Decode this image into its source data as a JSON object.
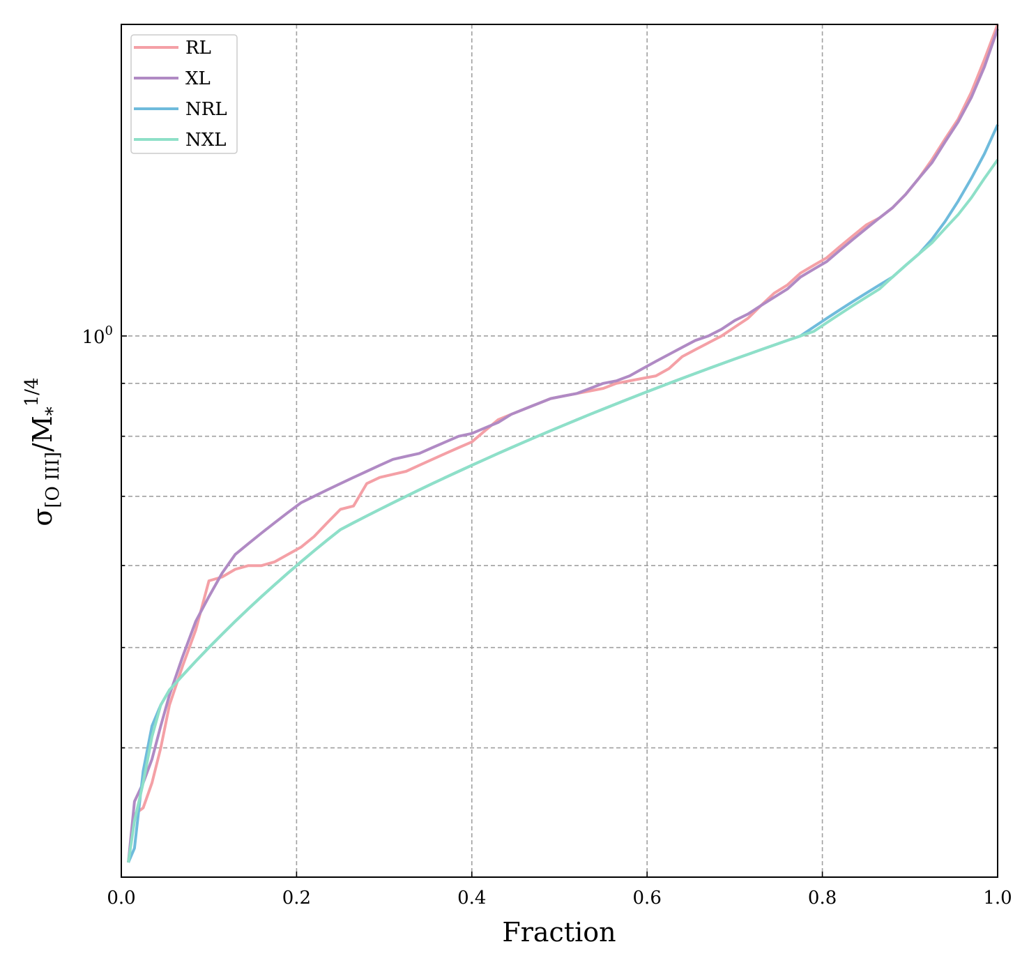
{
  "chart_data": {
    "type": "line",
    "xlabel": "Fraction",
    "ylabel": "σ[O III]/M*1/4",
    "ylabel_parts": {
      "sigma": "σ",
      "subscript": "[O III]",
      "mid": "/M",
      "sub2": "*",
      "sup": "1/4"
    },
    "xlim": [
      0.0,
      1.0
    ],
    "ylim": [
      0.3,
      2.0
    ],
    "y_scale": "log",
    "x_ticks": [
      "0.0",
      "0.2",
      "0.4",
      "0.6",
      "0.8",
      "1.0"
    ],
    "y_tick_major": {
      "base": "10",
      "exp": "0"
    },
    "grid": true,
    "legend_position": "upper-left",
    "series": [
      {
        "name": "RL",
        "color": "#f4a0a6",
        "x": [
          0.008,
          0.015,
          0.025,
          0.035,
          0.045,
          0.055,
          0.07,
          0.085,
          0.1,
          0.115,
          0.13,
          0.145,
          0.16,
          0.175,
          0.19,
          0.205,
          0.22,
          0.235,
          0.25,
          0.265,
          0.28,
          0.295,
          0.31,
          0.325,
          0.34,
          0.355,
          0.37,
          0.385,
          0.4,
          0.415,
          0.43,
          0.445,
          0.46,
          0.475,
          0.49,
          0.505,
          0.52,
          0.535,
          0.55,
          0.565,
          0.58,
          0.595,
          0.61,
          0.625,
          0.64,
          0.655,
          0.67,
          0.685,
          0.7,
          0.715,
          0.73,
          0.745,
          0.76,
          0.775,
          0.79,
          0.805,
          0.82,
          0.835,
          0.85,
          0.865,
          0.88,
          0.895,
          0.91,
          0.925,
          0.94,
          0.955,
          0.97,
          0.985,
          1.0
        ],
        "y": [
          0.31,
          0.345,
          0.35,
          0.37,
          0.4,
          0.44,
          0.48,
          0.52,
          0.58,
          0.585,
          0.595,
          0.6,
          0.6,
          0.605,
          0.615,
          0.625,
          0.64,
          0.66,
          0.68,
          0.685,
          0.72,
          0.73,
          0.735,
          0.74,
          0.75,
          0.76,
          0.77,
          0.78,
          0.79,
          0.81,
          0.83,
          0.84,
          0.85,
          0.86,
          0.87,
          0.875,
          0.88,
          0.885,
          0.89,
          0.9,
          0.905,
          0.91,
          0.915,
          0.93,
          0.955,
          0.97,
          0.985,
          1.0,
          1.02,
          1.04,
          1.07,
          1.1,
          1.12,
          1.15,
          1.17,
          1.19,
          1.22,
          1.25,
          1.28,
          1.3,
          1.33,
          1.37,
          1.42,
          1.48,
          1.55,
          1.62,
          1.72,
          1.85,
          2.0
        ]
      },
      {
        "name": "XL",
        "color": "#b08ac4",
        "x": [
          0.008,
          0.015,
          0.025,
          0.035,
          0.045,
          0.055,
          0.07,
          0.085,
          0.1,
          0.115,
          0.13,
          0.145,
          0.16,
          0.175,
          0.19,
          0.205,
          0.22,
          0.235,
          0.25,
          0.265,
          0.28,
          0.295,
          0.31,
          0.325,
          0.34,
          0.355,
          0.37,
          0.385,
          0.4,
          0.415,
          0.43,
          0.445,
          0.46,
          0.475,
          0.49,
          0.505,
          0.52,
          0.535,
          0.55,
          0.565,
          0.58,
          0.595,
          0.61,
          0.625,
          0.64,
          0.655,
          0.67,
          0.685,
          0.7,
          0.715,
          0.73,
          0.745,
          0.76,
          0.775,
          0.79,
          0.805,
          0.82,
          0.835,
          0.85,
          0.865,
          0.88,
          0.895,
          0.91,
          0.925,
          0.94,
          0.955,
          0.97,
          0.985,
          1.0
        ],
        "y": [
          0.31,
          0.355,
          0.37,
          0.39,
          0.42,
          0.45,
          0.49,
          0.53,
          0.56,
          0.59,
          0.615,
          0.63,
          0.645,
          0.66,
          0.675,
          0.69,
          0.7,
          0.71,
          0.72,
          0.73,
          0.74,
          0.75,
          0.76,
          0.765,
          0.77,
          0.78,
          0.79,
          0.8,
          0.805,
          0.815,
          0.825,
          0.84,
          0.85,
          0.86,
          0.87,
          0.875,
          0.88,
          0.89,
          0.9,
          0.905,
          0.915,
          0.93,
          0.945,
          0.96,
          0.975,
          0.99,
          1.0,
          1.015,
          1.035,
          1.05,
          1.07,
          1.09,
          1.11,
          1.14,
          1.16,
          1.18,
          1.21,
          1.24,
          1.27,
          1.3,
          1.33,
          1.37,
          1.42,
          1.47,
          1.54,
          1.61,
          1.7,
          1.82,
          1.98
        ]
      },
      {
        "name": "NRL",
        "color": "#6fbbdc",
        "x": [
          0.008,
          0.015,
          0.025,
          0.035,
          0.045,
          0.055,
          0.07,
          0.085,
          0.1,
          0.115,
          0.13,
          0.145,
          0.16,
          0.175,
          0.19,
          0.205,
          0.22,
          0.235,
          0.25,
          0.265,
          0.28,
          0.295,
          0.31,
          0.325,
          0.34,
          0.355,
          0.37,
          0.385,
          0.4,
          0.415,
          0.43,
          0.445,
          0.46,
          0.475,
          0.49,
          0.505,
          0.52,
          0.535,
          0.55,
          0.565,
          0.58,
          0.595,
          0.61,
          0.625,
          0.64,
          0.655,
          0.67,
          0.685,
          0.7,
          0.715,
          0.73,
          0.745,
          0.76,
          0.775,
          0.79,
          0.805,
          0.82,
          0.835,
          0.85,
          0.865,
          0.88,
          0.895,
          0.91,
          0.925,
          0.94,
          0.955,
          0.97,
          0.985,
          1.0
        ],
        "y": [
          0.31,
          0.32,
          0.38,
          0.42,
          0.44,
          0.455,
          0.47,
          0.485,
          0.5,
          0.515,
          0.53,
          0.545,
          0.56,
          0.575,
          0.59,
          0.605,
          0.62,
          0.635,
          0.65,
          0.66,
          0.67,
          0.68,
          0.69,
          0.7,
          0.71,
          0.72,
          0.73,
          0.74,
          0.75,
          0.76,
          0.77,
          0.78,
          0.79,
          0.8,
          0.81,
          0.82,
          0.83,
          0.84,
          0.85,
          0.86,
          0.87,
          0.88,
          0.89,
          0.9,
          0.91,
          0.92,
          0.93,
          0.94,
          0.95,
          0.96,
          0.97,
          0.98,
          0.99,
          1.0,
          1.02,
          1.04,
          1.06,
          1.08,
          1.1,
          1.12,
          1.14,
          1.17,
          1.2,
          1.24,
          1.29,
          1.35,
          1.42,
          1.5,
          1.6
        ]
      },
      {
        "name": "NXL",
        "color": "#8ee0c8",
        "x": [
          0.008,
          0.015,
          0.025,
          0.035,
          0.045,
          0.055,
          0.07,
          0.085,
          0.1,
          0.115,
          0.13,
          0.145,
          0.16,
          0.175,
          0.19,
          0.205,
          0.22,
          0.235,
          0.25,
          0.265,
          0.28,
          0.295,
          0.31,
          0.325,
          0.34,
          0.355,
          0.37,
          0.385,
          0.4,
          0.415,
          0.43,
          0.445,
          0.46,
          0.475,
          0.49,
          0.505,
          0.52,
          0.535,
          0.55,
          0.565,
          0.58,
          0.595,
          0.61,
          0.625,
          0.64,
          0.655,
          0.67,
          0.685,
          0.7,
          0.715,
          0.73,
          0.745,
          0.76,
          0.775,
          0.79,
          0.805,
          0.82,
          0.835,
          0.85,
          0.865,
          0.88,
          0.895,
          0.91,
          0.925,
          0.94,
          0.955,
          0.97,
          0.985,
          1.0
        ],
        "y": [
          0.31,
          0.34,
          0.37,
          0.41,
          0.44,
          0.455,
          0.47,
          0.485,
          0.5,
          0.515,
          0.53,
          0.545,
          0.56,
          0.575,
          0.59,
          0.605,
          0.62,
          0.635,
          0.65,
          0.66,
          0.67,
          0.68,
          0.69,
          0.7,
          0.71,
          0.72,
          0.73,
          0.74,
          0.75,
          0.76,
          0.77,
          0.78,
          0.79,
          0.8,
          0.81,
          0.82,
          0.83,
          0.84,
          0.85,
          0.86,
          0.87,
          0.88,
          0.89,
          0.9,
          0.91,
          0.92,
          0.93,
          0.94,
          0.95,
          0.96,
          0.97,
          0.98,
          0.99,
          1.0,
          1.01,
          1.03,
          1.05,
          1.07,
          1.09,
          1.11,
          1.14,
          1.17,
          1.2,
          1.23,
          1.27,
          1.31,
          1.36,
          1.42,
          1.48
        ]
      }
    ]
  }
}
